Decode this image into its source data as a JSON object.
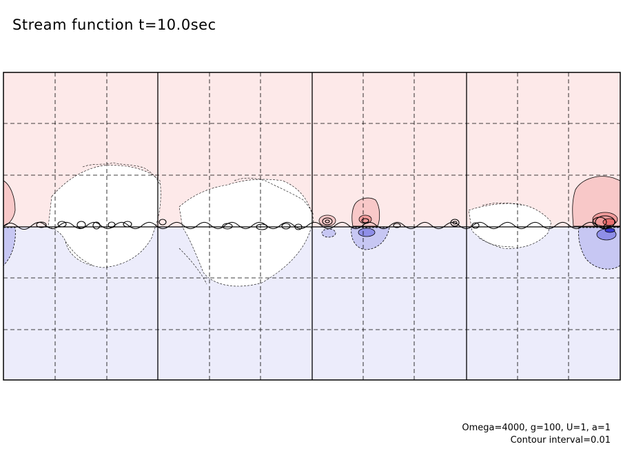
{
  "title": "Stream function t=10.0sec",
  "params": "Omega=4000, g=100, U=1, a=1",
  "contour_interval": "Contour interval=0.01",
  "colors": {
    "positive_fill": "#fde9e9",
    "positive_mid": "#f8c8c8",
    "positive_strong": "#f19b9b",
    "negative_fill": "#ececfb",
    "negative_mid": "#c7c7f3",
    "negative_strong": "#6060e0",
    "neutral": "#ffffff",
    "lines": "#000000"
  }
}
